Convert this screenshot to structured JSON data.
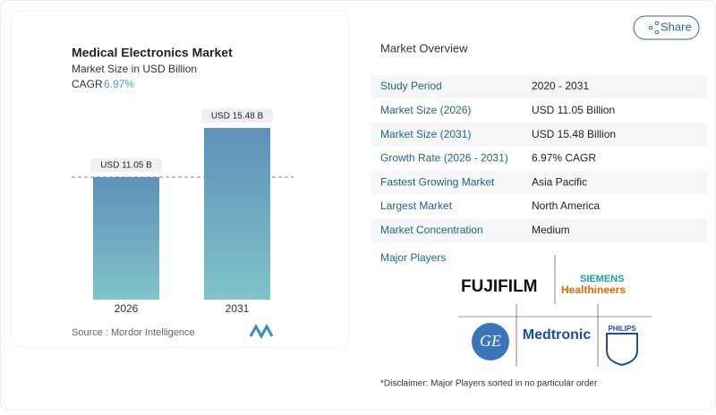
{
  "chart_data": {
    "type": "bar",
    "title": "Medical Electronics Market",
    "subtitle": "Market Size in USD Billion",
    "cagr_label": "CAGR",
    "cagr_value": "6.97%",
    "categories": [
      "2026",
      "2031"
    ],
    "values": [
      11.05,
      15.48
    ],
    "value_labels": [
      "USD 11.05 B",
      "USD 15.48 B"
    ],
    "source": "Source :  Mordor Intelligence"
  },
  "share": "Share",
  "overview": {
    "title": "Market Overview",
    "rows": [
      [
        "Study Period",
        "2020 - 2031"
      ],
      [
        "Market Size (2026)",
        "USD 11.05 Billion"
      ],
      [
        "Market Size (2031)",
        "USD 15.48 Billion"
      ],
      [
        "Growth Rate (2026 - 2031)",
        "6.97% CAGR"
      ],
      [
        "Fastest Growing Market",
        "Asia Pacific"
      ],
      [
        "Largest Market",
        "North America"
      ],
      [
        "Market Concentration",
        "Medium"
      ]
    ],
    "players_title": "Major Players",
    "players": [
      "FUJIFILM",
      "SIEMENS",
      "Healthineers",
      "GE",
      "Medtronic",
      "PHILIPS"
    ],
    "disclaimer": "*Disclaimer: Major Players sorted in no particular order"
  }
}
